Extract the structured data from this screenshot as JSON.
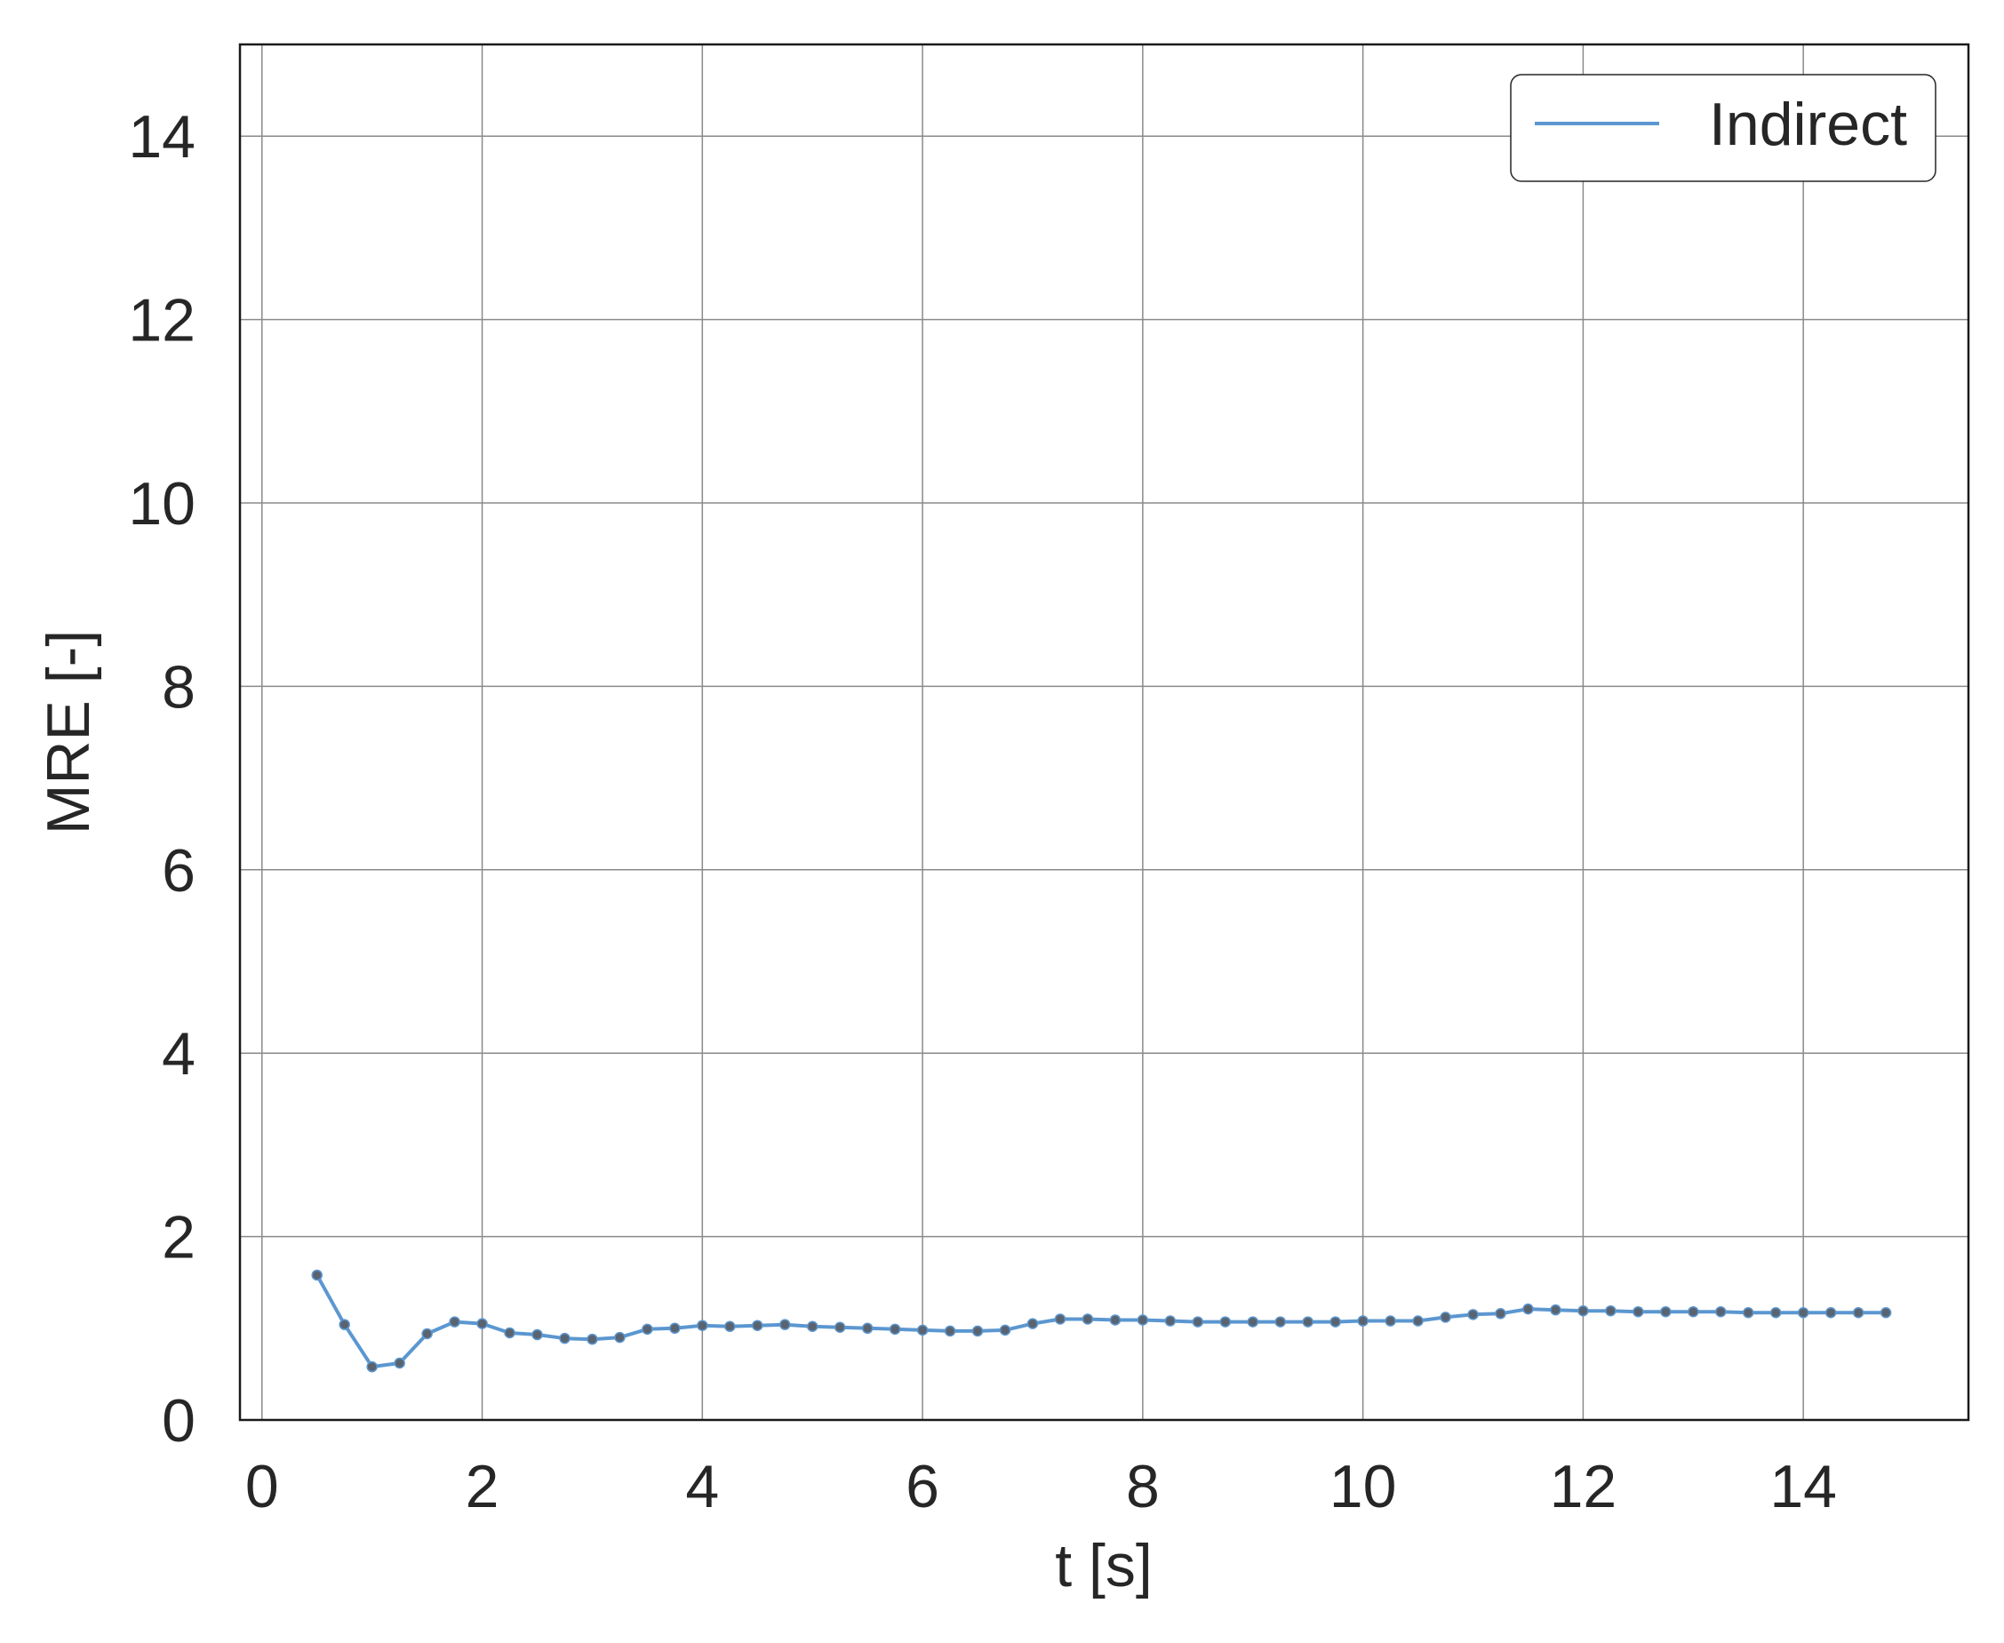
{
  "chart_data": {
    "type": "line",
    "xlabel": "t [s]",
    "ylabel": "MRE [-]",
    "xlim": [
      -0.2,
      15.5
    ],
    "ylim": [
      0,
      15
    ],
    "xticks": [
      0,
      2,
      4,
      6,
      8,
      10,
      12,
      14
    ],
    "yticks": [
      0,
      2,
      4,
      6,
      8,
      10,
      12,
      14
    ],
    "xtick_labels": [
      "0",
      "2",
      "4",
      "6",
      "8",
      "10",
      "12",
      "14"
    ],
    "ytick_labels": [
      "0",
      "2",
      "4",
      "6",
      "8",
      "10",
      "12",
      "14"
    ],
    "grid": true,
    "legend": {
      "placement": "top-right"
    },
    "series": [
      {
        "name": "Indirect",
        "color": "#5b97d1",
        "marker_color": "#5a6470",
        "x": [
          0.5,
          0.75,
          1.0,
          1.25,
          1.5,
          1.75,
          2.0,
          2.25,
          2.5,
          2.75,
          3.0,
          3.25,
          3.5,
          3.75,
          4.0,
          4.25,
          4.5,
          4.75,
          5.0,
          5.25,
          5.5,
          5.75,
          6.0,
          6.25,
          6.5,
          6.75,
          7.0,
          7.25,
          7.5,
          7.75,
          8.0,
          8.25,
          8.5,
          8.75,
          9.0,
          9.25,
          9.5,
          9.75,
          10.0,
          10.25,
          10.5,
          10.75,
          11.0,
          11.25,
          11.5,
          11.75,
          12.0,
          12.25,
          12.5,
          12.75,
          13.0,
          13.25,
          13.5,
          13.75,
          14.0,
          14.25,
          14.5,
          14.75
        ],
        "y": [
          1.58,
          1.04,
          0.58,
          0.62,
          0.94,
          1.07,
          1.05,
          0.95,
          0.93,
          0.89,
          0.88,
          0.9,
          0.99,
          1.0,
          1.03,
          1.02,
          1.03,
          1.04,
          1.02,
          1.01,
          1.0,
          0.99,
          0.98,
          0.97,
          0.97,
          0.98,
          1.05,
          1.1,
          1.1,
          1.09,
          1.09,
          1.08,
          1.07,
          1.07,
          1.07,
          1.07,
          1.07,
          1.07,
          1.08,
          1.08,
          1.08,
          1.12,
          1.15,
          1.16,
          1.21,
          1.2,
          1.19,
          1.19,
          1.18,
          1.18,
          1.18,
          1.18,
          1.17,
          1.17,
          1.17,
          1.17,
          1.17,
          1.17
        ]
      }
    ]
  }
}
